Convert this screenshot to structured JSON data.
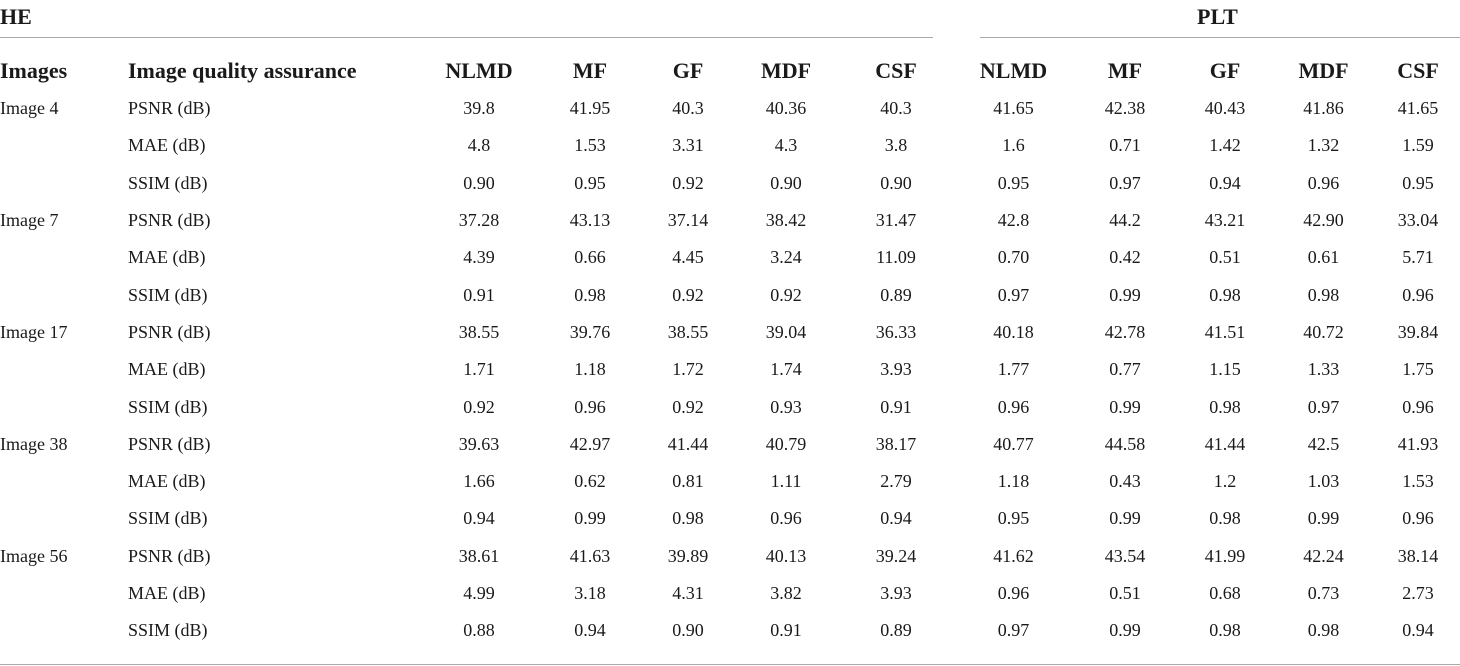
{
  "groups": {
    "left": "HE",
    "right": "PLT"
  },
  "headers": [
    "Images",
    "Image quality assurance",
    "NLMD",
    "MF",
    "GF",
    "MDF",
    "CSF",
    "NLMD",
    "MF",
    "GF",
    "MDF",
    "CSF"
  ],
  "rows": [
    [
      "Image 4",
      "PSNR (dB)",
      "39.8",
      "41.95",
      "40.3",
      "40.36",
      "40.3",
      "41.65",
      "42.38",
      "40.43",
      "41.86",
      "41.65"
    ],
    [
      "",
      "MAE (dB)",
      "4.8",
      "1.53",
      "3.31",
      "4.3",
      "3.8",
      "1.6",
      "0.71",
      "1.42",
      "1.32",
      "1.59"
    ],
    [
      "",
      "SSIM (dB)",
      "0.90",
      "0.95",
      "0.92",
      "0.90",
      "0.90",
      "0.95",
      "0.97",
      "0.94",
      "0.96",
      "0.95"
    ],
    [
      "Image 7",
      "PSNR (dB)",
      "37.28",
      "43.13",
      "37.14",
      "38.42",
      "31.47",
      "42.8",
      "44.2",
      "43.21",
      "42.90",
      "33.04"
    ],
    [
      "",
      "MAE (dB)",
      "4.39",
      "0.66",
      "4.45",
      "3.24",
      "11.09",
      "0.70",
      "0.42",
      "0.51",
      "0.61",
      "5.71"
    ],
    [
      "",
      "SSIM (dB)",
      "0.91",
      "0.98",
      "0.92",
      "0.92",
      "0.89",
      "0.97",
      "0.99",
      "0.98",
      "0.98",
      "0.96"
    ],
    [
      "Image 17",
      "PSNR (dB)",
      "38.55",
      "39.76",
      "38.55",
      "39.04",
      "36.33",
      "40.18",
      "42.78",
      "41.51",
      "40.72",
      "39.84"
    ],
    [
      "",
      "MAE (dB)",
      "1.71",
      "1.18",
      "1.72",
      "1.74",
      "3.93",
      "1.77",
      "0.77",
      "1.15",
      "1.33",
      "1.75"
    ],
    [
      "",
      "SSIM (dB)",
      "0.92",
      "0.96",
      "0.92",
      "0.93",
      "0.91",
      "0.96",
      "0.99",
      "0.98",
      "0.97",
      "0.96"
    ],
    [
      "Image 38",
      "PSNR (dB)",
      "39.63",
      "42.97",
      "41.44",
      "40.79",
      "38.17",
      "40.77",
      "44.58",
      "41.44",
      "42.5",
      "41.93"
    ],
    [
      "",
      "MAE (dB)",
      "1.66",
      "0.62",
      "0.81",
      "1.11",
      "2.79",
      "1.18",
      "0.43",
      "1.2",
      "1.03",
      "1.53"
    ],
    [
      "",
      "SSIM (dB)",
      "0.94",
      "0.99",
      "0.98",
      "0.96",
      "0.94",
      "0.95",
      "0.99",
      "0.98",
      "0.99",
      "0.96"
    ],
    [
      "Image 56",
      "PSNR (dB)",
      "38.61",
      "41.63",
      "39.89",
      "40.13",
      "39.24",
      "41.62",
      "43.54",
      "41.99",
      "42.24",
      "38.14"
    ],
    [
      "",
      "MAE (dB)",
      "4.99",
      "3.18",
      "4.31",
      "3.82",
      "3.93",
      "0.96",
      "0.51",
      "0.68",
      "0.73",
      "2.73"
    ],
    [
      "",
      "SSIM (dB)",
      "0.88",
      "0.94",
      "0.90",
      "0.91",
      "0.89",
      "0.97",
      "0.99",
      "0.98",
      "0.98",
      "0.94"
    ]
  ]
}
